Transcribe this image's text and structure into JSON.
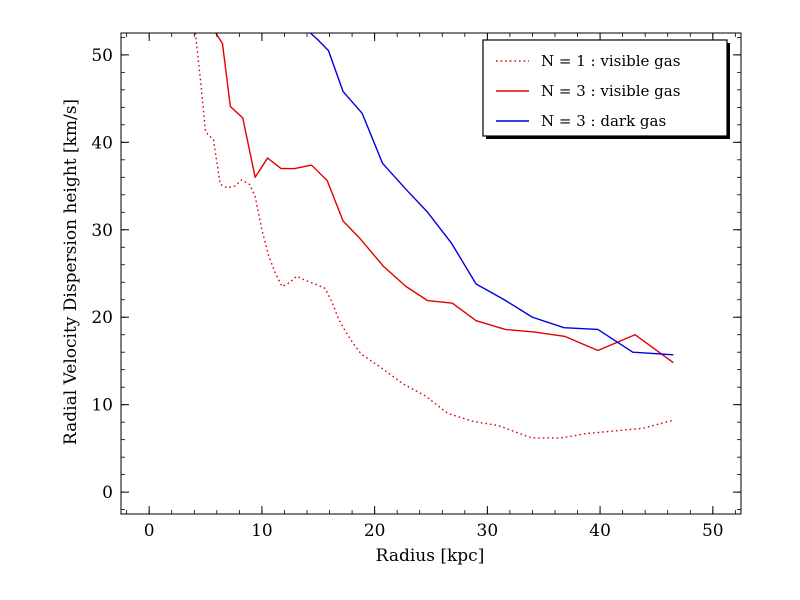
{
  "chart_data": {
    "type": "line",
    "title": "",
    "xlabel": "Radius [kpc]",
    "ylabel": "Radial Velocity Dispersion height [km/s]",
    "xlim": [
      -2.5,
      52.5
    ],
    "ylim": [
      -2.5,
      52.5
    ],
    "xticks": [
      0,
      10,
      20,
      30,
      40,
      50
    ],
    "yticks": [
      0,
      10,
      20,
      30,
      40,
      50
    ],
    "grid": false,
    "legend_position": "top-right",
    "series": [
      {
        "name": "N = 1 : visible gas",
        "color": "#e00000",
        "style": "dotted",
        "x": [
          4.1,
          4.6,
          5.0,
          5.7,
          6.3,
          6.9,
          7.6,
          8.2,
          8.9,
          9.4,
          10.0,
          10.6,
          11.2,
          11.8,
          12.5,
          13.1,
          13.7,
          14.3,
          14.9,
          15.6,
          16.2,
          16.8,
          17.4,
          18.1,
          18.8,
          20.5,
          22.5,
          24.5,
          26.5,
          28.7,
          31.0,
          33.5,
          34.0,
          36.5,
          38.8,
          41.3,
          43.8,
          46.4
        ],
        "y": [
          52.5,
          46.5,
          41.2,
          40.3,
          35.2,
          34.8,
          35.0,
          35.7,
          35.2,
          33.8,
          30.0,
          27.0,
          25.0,
          23.5,
          24.0,
          24.7,
          24.3,
          24.0,
          23.7,
          23.3,
          21.8,
          19.8,
          18.4,
          17.0,
          15.8,
          14.3,
          12.4,
          11.0,
          9.0,
          8.1,
          7.6,
          6.4,
          6.2,
          6.2,
          6.7,
          7.0,
          7.3,
          8.2
        ]
      },
      {
        "name": "N = 3 : visible gas",
        "color": "#e00000",
        "style": "solid",
        "x": [
          5.9,
          6.5,
          7.2,
          8.3,
          9.4,
          10.5,
          11.7,
          12.9,
          14.4,
          15.8,
          17.2,
          18.7,
          20.8,
          22.8,
          24.7,
          26.9,
          29.0,
          31.6,
          34.2,
          36.9,
          39.8,
          43.1,
          46.5
        ],
        "y": [
          52.5,
          51.3,
          44.1,
          42.8,
          36.0,
          38.2,
          37.0,
          37.0,
          37.4,
          35.6,
          31.0,
          29.0,
          25.8,
          23.5,
          21.9,
          21.6,
          19.6,
          18.6,
          18.3,
          17.8,
          16.2,
          18.0,
          14.8
        ]
      },
      {
        "name": "N = 3 : dark gas",
        "color": "#0000e0",
        "style": "solid",
        "x": [
          14.3,
          14.9,
          15.9,
          17.2,
          18.9,
          20.7,
          22.8,
          24.7,
          26.8,
          29.0,
          31.5,
          34.0,
          36.8,
          39.8,
          42.9,
          46.5
        ],
        "y": [
          52.5,
          51.8,
          50.5,
          45.8,
          43.3,
          37.6,
          34.6,
          32.0,
          28.5,
          23.8,
          22.0,
          20.0,
          18.8,
          18.6,
          16.0,
          15.7
        ]
      }
    ]
  }
}
